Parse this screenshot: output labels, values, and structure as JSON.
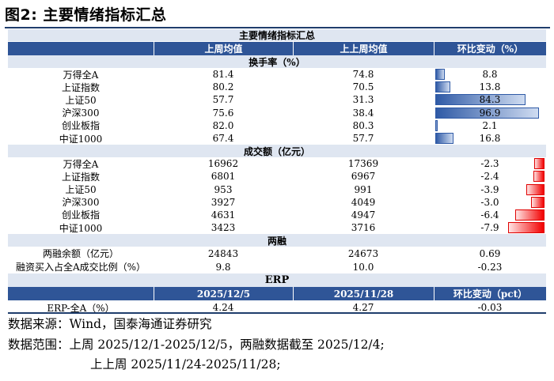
{
  "figure_title": "图2:  主要情绪指标汇总",
  "table": {
    "title": "主要情绪指标汇总",
    "columns": [
      "",
      "上周均值",
      "上上周均值",
      "环比变动（%）"
    ],
    "sections": [
      {
        "header": "换手率（%）",
        "rows": [
          {
            "label": "万得全A",
            "last_week": "81.4",
            "prev_week": "74.8",
            "change": "8.8",
            "change_value": 8.8
          },
          {
            "label": "上证指数",
            "last_week": "80.2",
            "prev_week": "70.5",
            "change": "13.8",
            "change_value": 13.8
          },
          {
            "label": "上证50",
            "last_week": "57.7",
            "prev_week": "31.3",
            "change": "84.3",
            "change_value": 84.3
          },
          {
            "label": "沪深300",
            "last_week": "75.6",
            "prev_week": "38.4",
            "change": "96.9",
            "change_value": 96.9
          },
          {
            "label": "创业板指",
            "last_week": "82.0",
            "prev_week": "80.3",
            "change": "2.1",
            "change_value": 2.1
          },
          {
            "label": "中证1000",
            "last_week": "67.4",
            "prev_week": "57.7",
            "change": "16.8",
            "change_value": 16.8
          }
        ]
      },
      {
        "header": "成交额（亿元）",
        "rows": [
          {
            "label": "万得全A",
            "last_week": "16962",
            "prev_week": "17369",
            "change": "-2.3",
            "change_value": -2.3
          },
          {
            "label": "上证指数",
            "last_week": "6801",
            "prev_week": "6967",
            "change": "-2.4",
            "change_value": -2.4
          },
          {
            "label": "上证50",
            "last_week": "953",
            "prev_week": "991",
            "change": "-3.9",
            "change_value": -3.9
          },
          {
            "label": "沪深300",
            "last_week": "3927",
            "prev_week": "4049",
            "change": "-3.0",
            "change_value": -3.0
          },
          {
            "label": "创业板指",
            "last_week": "4631",
            "prev_week": "4947",
            "change": "-6.4",
            "change_value": -6.4
          },
          {
            "label": "中证1000",
            "last_week": "3423",
            "prev_week": "3716",
            "change": "-7.9",
            "change_value": -7.9
          }
        ]
      },
      {
        "header": "两融",
        "rows": [
          {
            "label": "两融余额（亿元）",
            "last_week": "24843",
            "prev_week": "24673",
            "change": "0.69"
          },
          {
            "label": "融资买入占全A成交比例（%）",
            "last_week": "9.8",
            "prev_week": "10.0",
            "change": "-0.23"
          }
        ]
      }
    ],
    "erp": {
      "header": "ERP",
      "columns": [
        "",
        "2025/12/5",
        "2025/11/28",
        "环比变动（pct）"
      ],
      "rows": [
        {
          "label": "ERP-全A（%）",
          "last_week": "4.24",
          "prev_week": "4.27",
          "change": "-0.03"
        }
      ]
    }
  },
  "notes": {
    "source": "数据来源：Wind，国泰海通证券研究",
    "range_line1": "数据范围：上周 2025/12/1-2025/12/5，两融数据截至 2025/12/4;",
    "range_line2": "上上周 2025/11/24-2025/11/28;"
  },
  "colors": {
    "header_blue": "#2f5597",
    "section_bg": "#dfe6f1",
    "positive_bar": "#2f5aa6",
    "negative_bar": "#f20000"
  }
}
